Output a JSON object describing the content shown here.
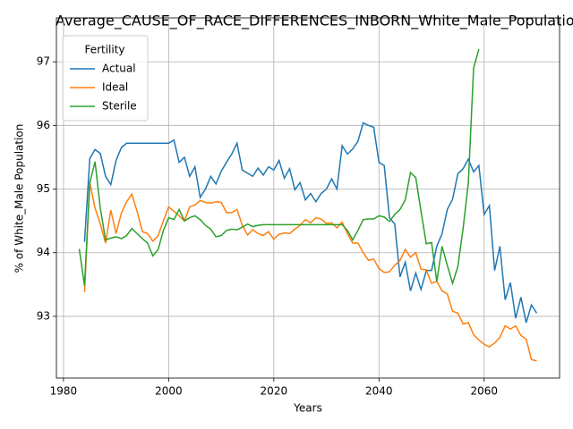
{
  "chart_data": {
    "type": "line",
    "title": "Average_CAUSE_OF_RACE_DIFFERENCES_INBORN_White_Male_Populatio",
    "xlabel": "Years",
    "ylabel": "% of White_Male Population",
    "legend_title": "Fertility",
    "legend": "upper left",
    "grid": true,
    "xlim": [
      1978.65,
      2074.35
    ],
    "ylim": [
      92.03,
      97.69
    ],
    "xticks": [
      1980,
      2000,
      2020,
      2040,
      2060
    ],
    "yticks": [
      93,
      94,
      95,
      96,
      97
    ],
    "x": [
      1983,
      1984,
      1985,
      1986,
      1987,
      1988,
      1989,
      1990,
      1991,
      1992,
      1993,
      1994,
      1995,
      1996,
      1997,
      1998,
      1999,
      2000,
      2001,
      2002,
      2003,
      2004,
      2005,
      2006,
      2007,
      2008,
      2009,
      2010,
      2011,
      2012,
      2013,
      2014,
      2015,
      2016,
      2017,
      2018,
      2019,
      2020,
      2021,
      2022,
      2023,
      2024,
      2025,
      2026,
      2027,
      2028,
      2029,
      2030,
      2031,
      2032,
      2033,
      2034,
      2035,
      2036,
      2037,
      2038,
      2039,
      2040,
      2041,
      2042,
      2043,
      2044,
      2045,
      2046,
      2047,
      2048,
      2049,
      2050,
      2051,
      2052,
      2053,
      2054,
      2055,
      2056,
      2057,
      2058,
      2059,
      2060,
      2061,
      2062,
      2063,
      2064,
      2065,
      2066,
      2067,
      2068,
      2069,
      2070
    ],
    "series": [
      {
        "name": "Actual",
        "color": "#1f77b4",
        "values": [
          null,
          94.17,
          95.48,
          95.62,
          95.56,
          95.2,
          95.07,
          95.45,
          95.65,
          95.72,
          95.72,
          95.72,
          95.72,
          95.72,
          95.72,
          95.72,
          95.72,
          95.72,
          95.77,
          95.42,
          95.5,
          95.2,
          95.35,
          94.87,
          95.0,
          95.2,
          95.08,
          95.28,
          95.42,
          95.55,
          95.72,
          95.3,
          95.25,
          95.2,
          95.33,
          95.22,
          95.35,
          95.3,
          95.45,
          95.17,
          95.32,
          94.99,
          95.1,
          94.83,
          94.93,
          94.8,
          94.93,
          95.0,
          95.16,
          95.0,
          95.68,
          95.55,
          95.63,
          95.75,
          96.04,
          96.0,
          95.97,
          95.42,
          95.37,
          94.55,
          94.45,
          93.62,
          93.85,
          93.4,
          93.68,
          93.42,
          93.72,
          93.72,
          94.1,
          94.3,
          94.68,
          94.84,
          95.24,
          95.32,
          95.47,
          95.27,
          95.37,
          94.6,
          94.74,
          93.72,
          94.1,
          93.26,
          93.53,
          92.97,
          93.3,
          92.9,
          93.18,
          93.05
        ]
      },
      {
        "name": "Ideal",
        "color": "#ff7f0e",
        "values": [
          null,
          93.38,
          95.1,
          94.7,
          94.45,
          94.15,
          94.67,
          94.3,
          94.62,
          94.8,
          94.92,
          94.65,
          94.33,
          94.3,
          94.18,
          94.27,
          94.5,
          94.72,
          94.65,
          94.58,
          94.5,
          94.72,
          94.75,
          94.82,
          94.79,
          94.78,
          94.8,
          94.79,
          94.63,
          94.63,
          94.68,
          94.43,
          94.28,
          94.36,
          94.3,
          94.27,
          94.33,
          94.21,
          94.29,
          94.31,
          94.3,
          94.37,
          94.43,
          94.52,
          94.47,
          94.55,
          94.53,
          94.46,
          94.47,
          94.39,
          94.48,
          94.3,
          94.15,
          94.15,
          94.0,
          93.88,
          93.9,
          93.75,
          93.69,
          93.7,
          93.8,
          93.88,
          94.05,
          93.93,
          94.0,
          93.74,
          93.73,
          93.52,
          93.55,
          93.4,
          93.35,
          93.08,
          93.05,
          92.88,
          92.9,
          92.71,
          92.63,
          92.56,
          92.52,
          92.58,
          92.67,
          92.85,
          92.8,
          92.85,
          92.7,
          92.64,
          92.32,
          92.3
        ]
      },
      {
        "name": "Sterile",
        "color": "#2ca02c",
        "values": [
          94.06,
          93.48,
          95.1,
          95.43,
          94.7,
          94.2,
          94.23,
          94.25,
          94.22,
          94.27,
          94.38,
          94.3,
          94.22,
          94.15,
          93.95,
          94.05,
          94.35,
          94.55,
          94.52,
          94.68,
          94.5,
          94.55,
          94.58,
          94.52,
          94.43,
          94.37,
          94.25,
          94.27,
          94.35,
          94.37,
          94.36,
          94.4,
          94.45,
          94.41,
          94.43,
          94.44,
          94.44,
          94.44,
          94.44,
          94.44,
          94.44,
          94.44,
          94.44,
          94.44,
          94.44,
          94.44,
          94.44,
          94.44,
          94.44,
          94.44,
          94.44,
          94.35,
          94.2,
          94.35,
          94.52,
          94.53,
          94.53,
          94.58,
          94.56,
          94.49,
          94.6,
          94.68,
          94.83,
          95.26,
          95.18,
          94.65,
          94.14,
          94.16,
          93.55,
          94.1,
          93.8,
          93.52,
          93.78,
          94.38,
          95.1,
          96.9,
          97.2,
          null,
          null,
          null,
          null,
          null,
          null,
          null,
          null,
          null,
          null,
          null
        ]
      }
    ]
  }
}
